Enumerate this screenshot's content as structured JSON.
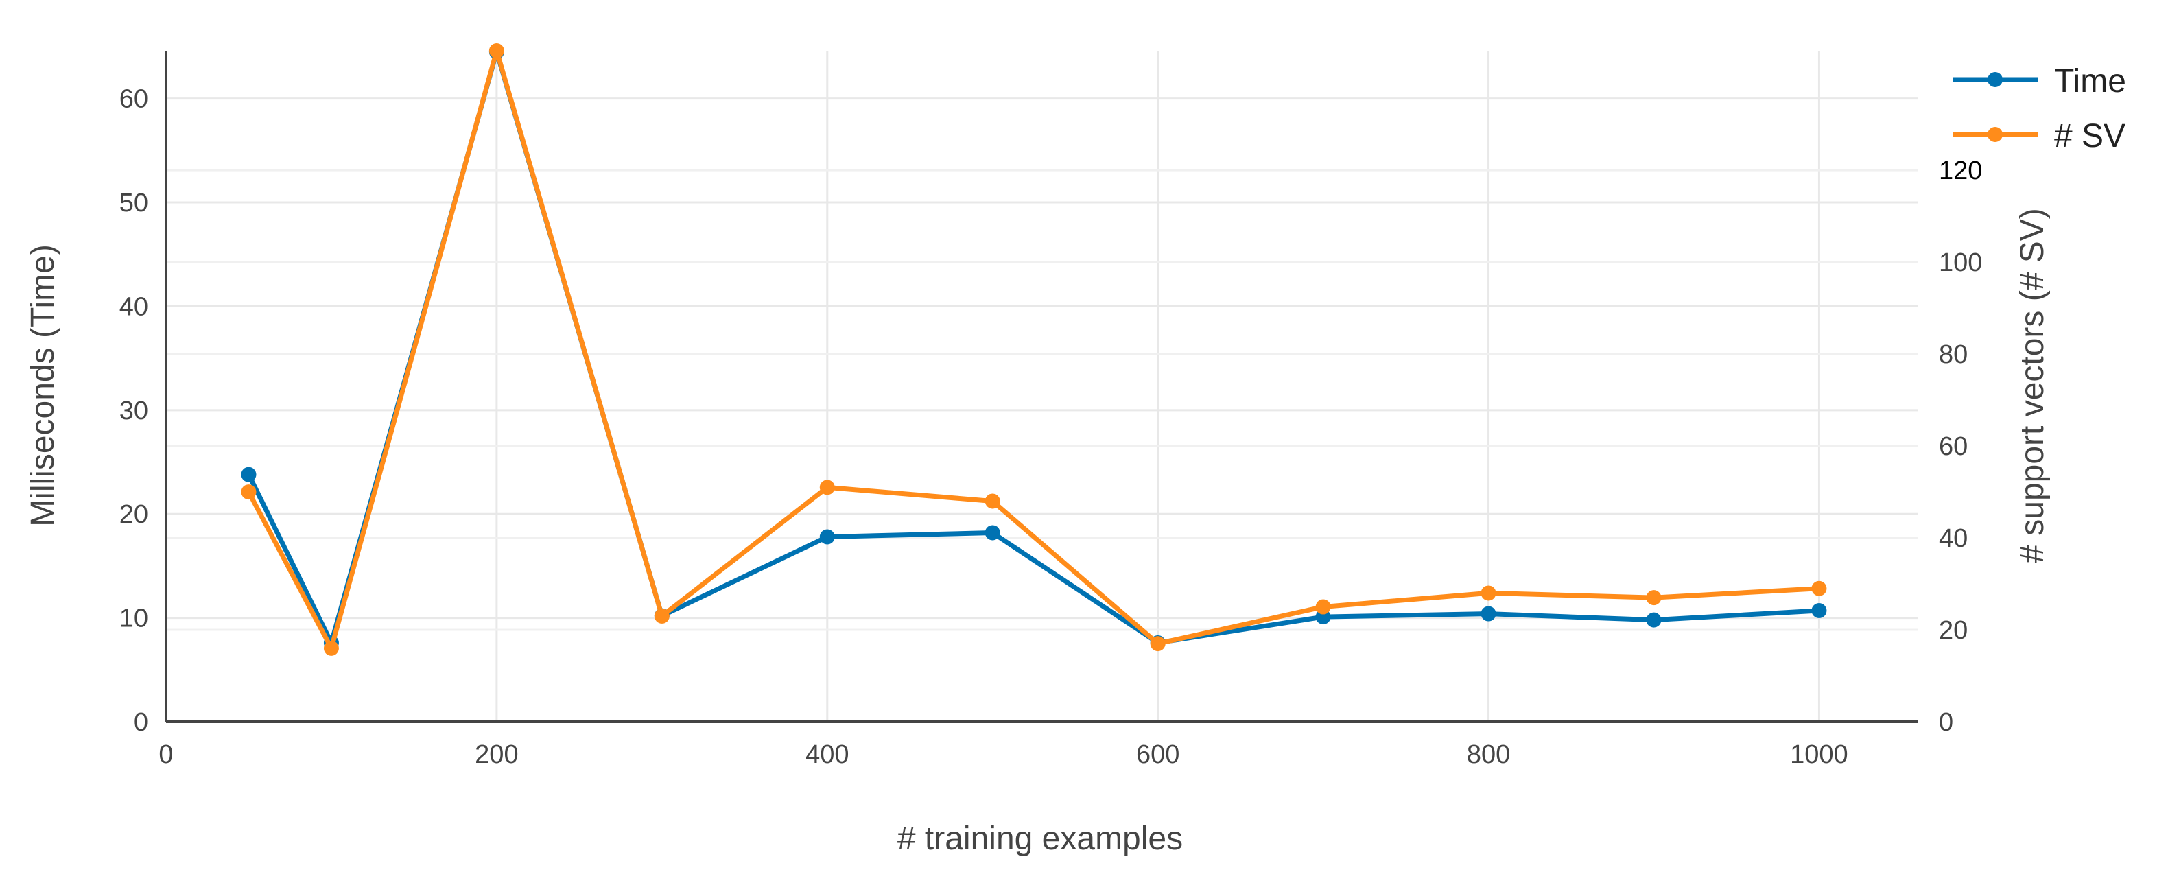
{
  "chart_data": {
    "type": "line",
    "title": "",
    "xlabel": "# training examples",
    "ylabel": "Milliseconds (Time)",
    "y2label": "# support vectors (# SV)",
    "xlim": [
      0,
      1060
    ],
    "ylim": [
      0,
      64.6
    ],
    "y2lim": [
      0,
      146
    ],
    "x_ticks": [
      "0",
      "200",
      "400",
      "600",
      "800",
      "1000"
    ],
    "x_tick_values": [
      0,
      200,
      400,
      600,
      800,
      1000
    ],
    "y_ticks": [
      "0",
      "10",
      "20",
      "30",
      "40",
      "50",
      "60"
    ],
    "y_tick_values": [
      0,
      10,
      20,
      30,
      40,
      50,
      60
    ],
    "y2_ticks": [
      "0",
      "20",
      "40",
      "60",
      "80",
      "100",
      "120"
    ],
    "y2_tick_values": [
      0,
      20,
      40,
      60,
      80,
      100,
      120
    ],
    "grid": true,
    "legend_position": "top-right",
    "series": [
      {
        "name": "Time",
        "axis": "y",
        "color": "#0072b2",
        "x": [
          50,
          100,
          200,
          300,
          400,
          500,
          600,
          700,
          800,
          900,
          1000
        ],
        "values": [
          23.8,
          7.6,
          64.5,
          10.2,
          17.8,
          18.2,
          7.6,
          10.1,
          10.4,
          9.8,
          10.7
        ]
      },
      {
        "name": "# SV",
        "axis": "y2",
        "color": "#ff8c1a",
        "x": [
          50,
          100,
          200,
          300,
          400,
          500,
          600,
          700,
          800,
          900,
          1000
        ],
        "values": [
          50,
          16,
          146,
          23,
          51,
          48,
          17,
          25,
          28,
          27,
          29
        ]
      }
    ]
  }
}
